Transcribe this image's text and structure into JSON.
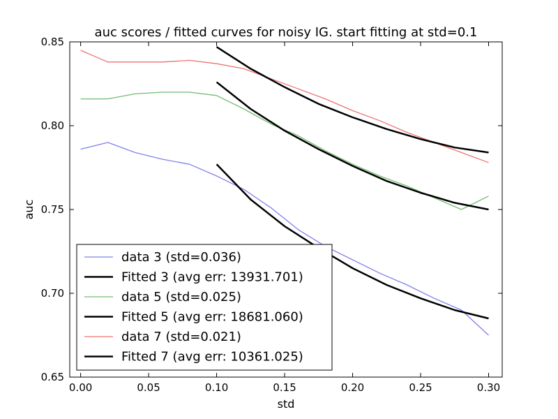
{
  "chart_data": {
    "type": "line",
    "title": "auc scores / fitted curves for noisy IG. start fitting at std=0.1",
    "xlabel": "std",
    "ylabel": "auc",
    "xlim": [
      -0.008,
      0.31
    ],
    "ylim": [
      0.65,
      0.85
    ],
    "xticks": [
      "0.00",
      "0.05",
      "0.10",
      "0.15",
      "0.20",
      "0.25",
      "0.30"
    ],
    "yticks": [
      "0.65",
      "0.70",
      "0.75",
      "0.80",
      "0.85"
    ],
    "grid": false,
    "legend_position": "lower-left",
    "series": [
      {
        "name": "data 3 (std=0.036)",
        "kind": "data",
        "color": "#8080ee",
        "x": [
          0.0,
          0.02,
          0.04,
          0.06,
          0.08,
          0.1,
          0.12,
          0.14,
          0.16,
          0.18,
          0.2,
          0.22,
          0.24,
          0.26,
          0.28,
          0.3
        ],
        "y": [
          0.786,
          0.79,
          0.784,
          0.78,
          0.777,
          0.77,
          0.762,
          0.751,
          0.738,
          0.728,
          0.72,
          0.712,
          0.705,
          0.697,
          0.69,
          0.675
        ]
      },
      {
        "name": "Fitted 3 (avg err: 13931.701)",
        "kind": "fit",
        "color": "#000000",
        "x": [
          0.1,
          0.125,
          0.15,
          0.175,
          0.2,
          0.225,
          0.25,
          0.275,
          0.3
        ],
        "y": [
          0.777,
          0.756,
          0.74,
          0.727,
          0.715,
          0.705,
          0.697,
          0.69,
          0.685
        ]
      },
      {
        "name": "data 5 (std=0.025)",
        "kind": "data",
        "color": "#70bb70",
        "x": [
          0.0,
          0.02,
          0.04,
          0.06,
          0.08,
          0.1,
          0.12,
          0.14,
          0.16,
          0.18,
          0.2,
          0.22,
          0.24,
          0.26,
          0.28,
          0.3
        ],
        "y": [
          0.816,
          0.816,
          0.819,
          0.82,
          0.82,
          0.818,
          0.81,
          0.801,
          0.794,
          0.785,
          0.777,
          0.77,
          0.764,
          0.757,
          0.75,
          0.758
        ]
      },
      {
        "name": "Fitted 5 (avg err: 18681.060)",
        "kind": "fit",
        "color": "#000000",
        "x": [
          0.1,
          0.125,
          0.15,
          0.175,
          0.2,
          0.225,
          0.25,
          0.275,
          0.3
        ],
        "y": [
          0.826,
          0.81,
          0.797,
          0.786,
          0.776,
          0.767,
          0.76,
          0.754,
          0.75
        ]
      },
      {
        "name": "data 7 (std=0.021)",
        "kind": "data",
        "color": "#f07070",
        "x": [
          0.0,
          0.02,
          0.04,
          0.06,
          0.08,
          0.1,
          0.12,
          0.14,
          0.16,
          0.18,
          0.2,
          0.22,
          0.24,
          0.26,
          0.28,
          0.3
        ],
        "y": [
          0.845,
          0.838,
          0.838,
          0.838,
          0.839,
          0.837,
          0.834,
          0.828,
          0.822,
          0.816,
          0.809,
          0.803,
          0.796,
          0.79,
          0.784,
          0.778
        ]
      },
      {
        "name": "Fitted 7 (avg err: 10361.025)",
        "kind": "fit",
        "color": "#000000",
        "x": [
          0.1,
          0.125,
          0.15,
          0.175,
          0.2,
          0.225,
          0.25,
          0.275,
          0.3
        ],
        "y": [
          0.847,
          0.834,
          0.823,
          0.813,
          0.805,
          0.798,
          0.792,
          0.787,
          0.784
        ]
      }
    ]
  }
}
